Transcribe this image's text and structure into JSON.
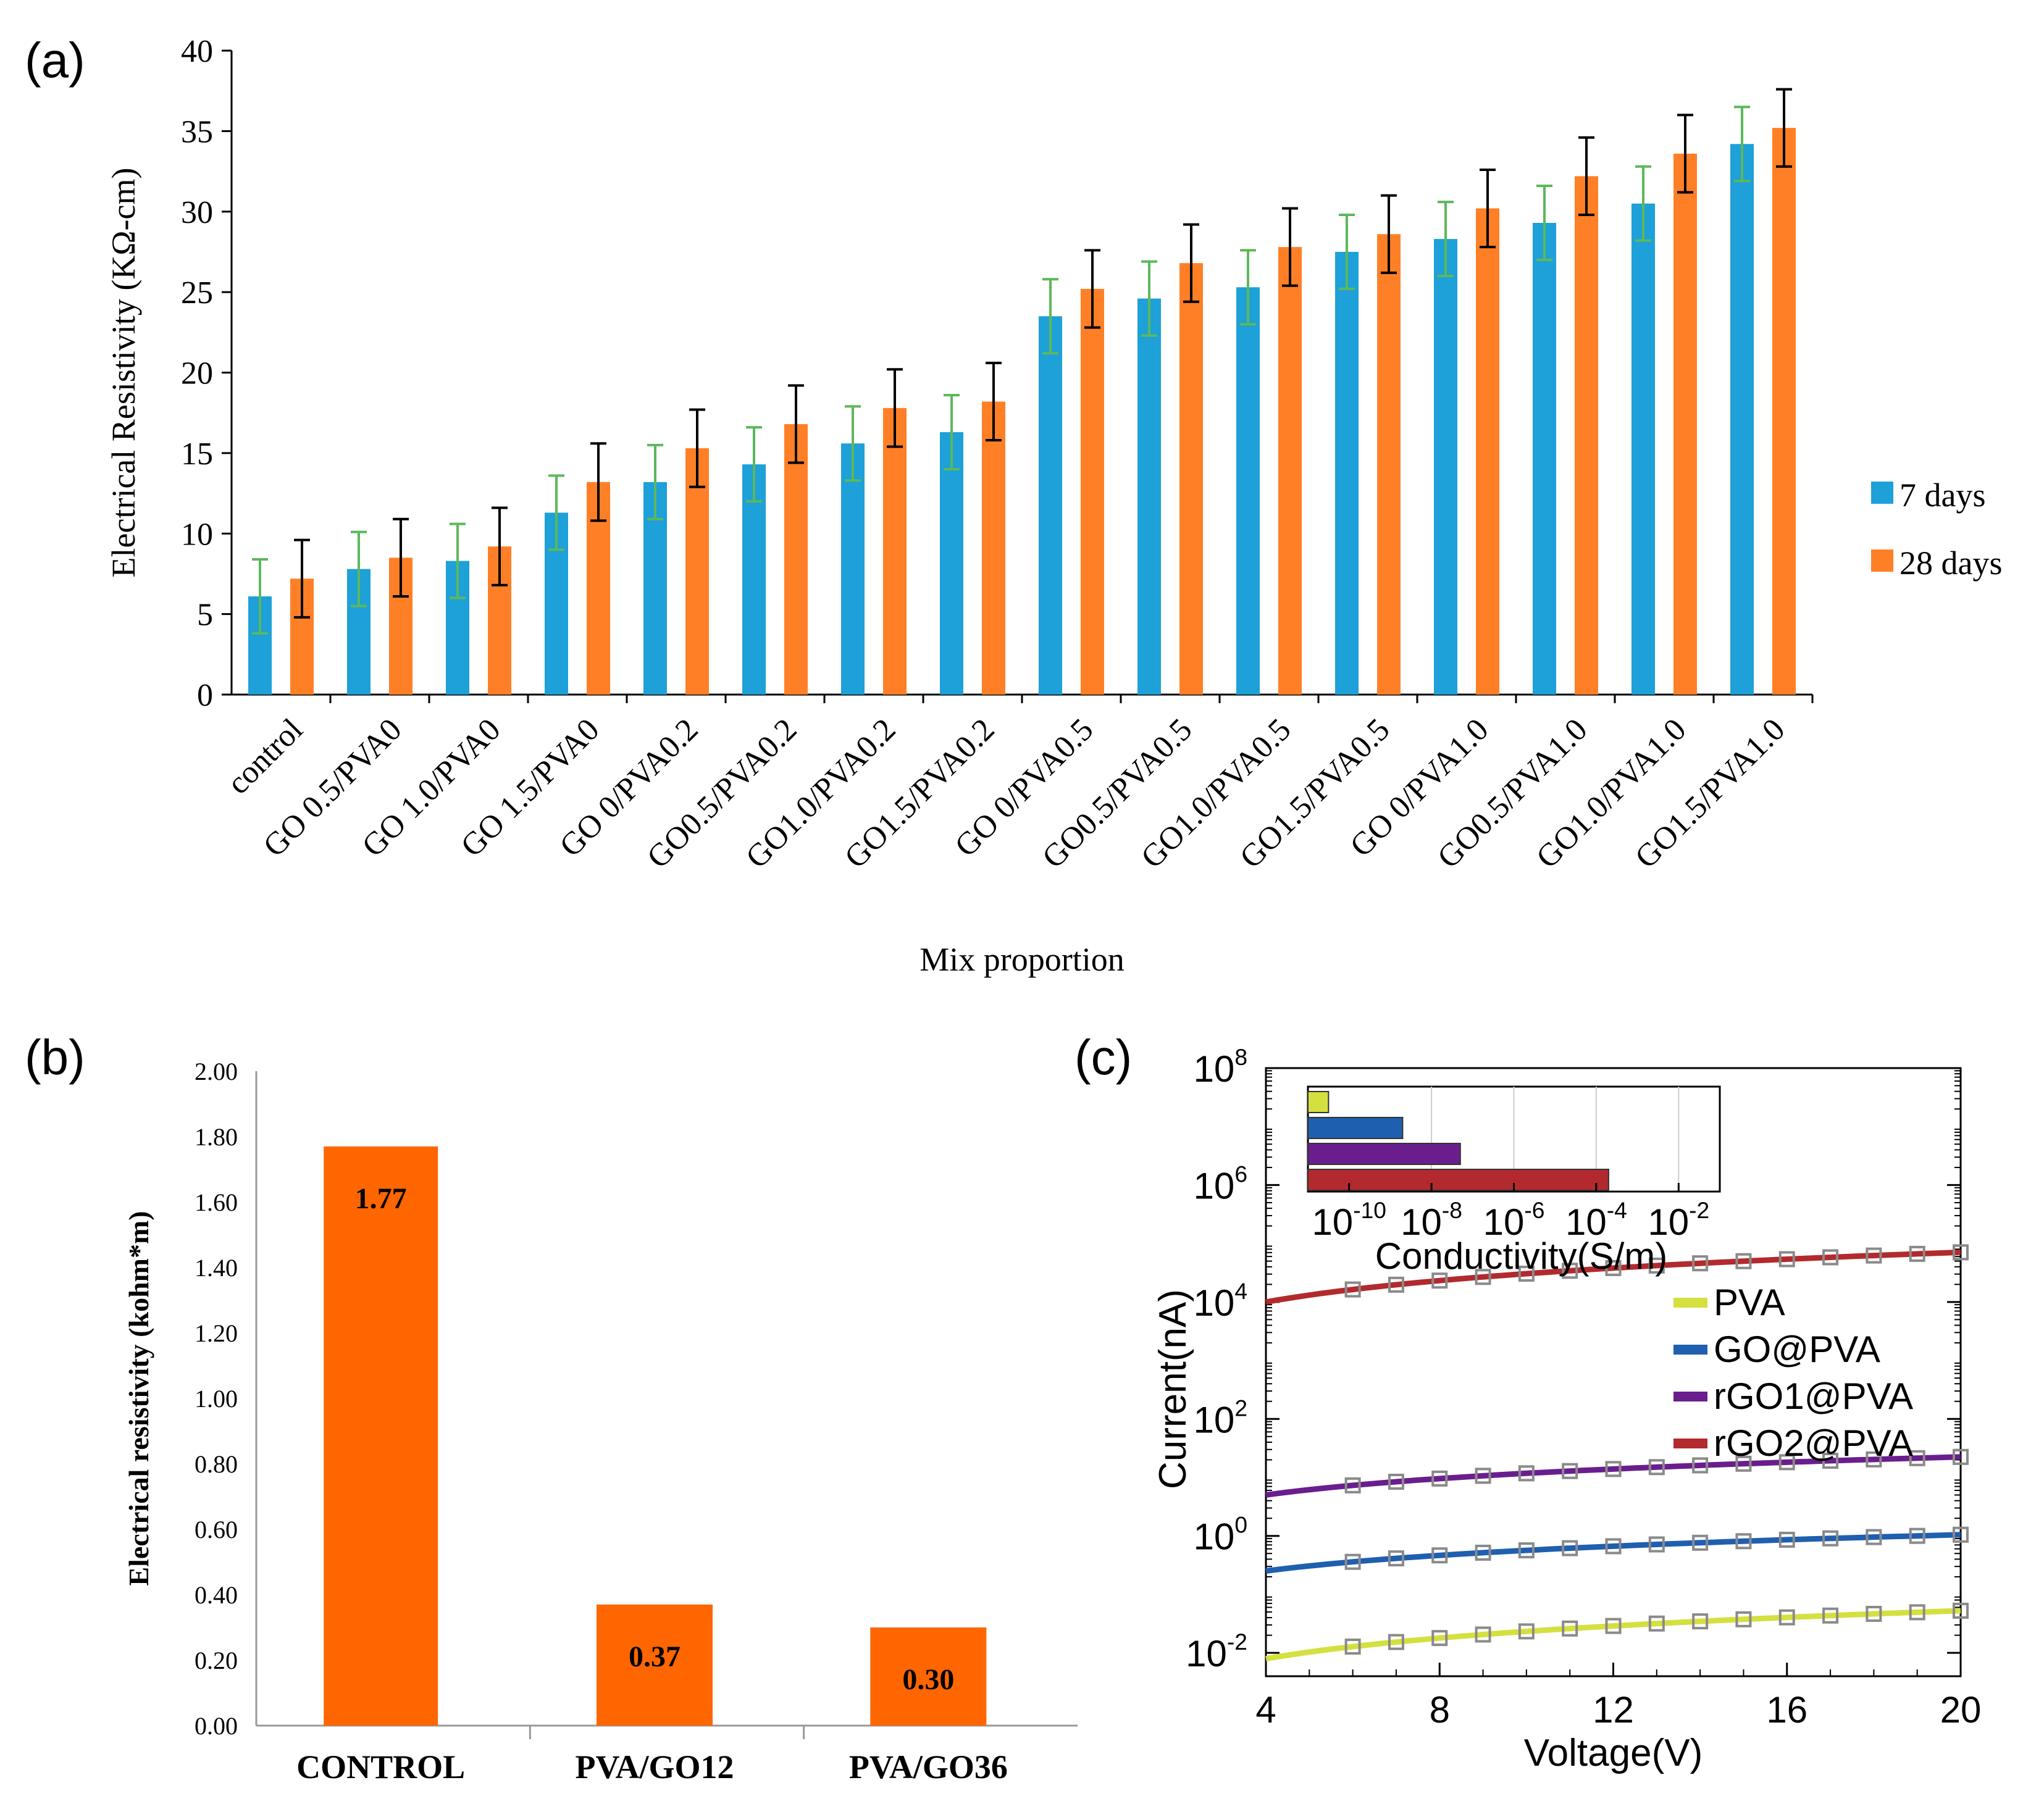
{
  "chart_data": [
    {
      "panel": "(a)",
      "type": "bar",
      "xlabel": "Mix proportion",
      "ylabel": "Electrical Resistivity (KΩ-cm)",
      "ylim": [
        0,
        40
      ],
      "yticks": [
        0,
        5,
        10,
        15,
        20,
        25,
        30,
        35,
        40
      ],
      "categories": [
        "control",
        "GO 0.5/PVA0",
        "GO 1.0/PVA0",
        "GO 1.5/PVA0",
        "GO 0/PVA0.2",
        "GO0.5/PVA0.2",
        "GO1.0/PVA0.2",
        "GO1.5/PVA0.2",
        "GO 0/PVA0.5",
        "GO0.5/PVA0.5",
        "GO1.0/PVA0.5",
        "GO1.5/PVA0.5",
        "GO 0/PVA1.0",
        "GO0.5/PVA1.0",
        "GO1.0/PVA1.0",
        "GO1.5/PVA1.0"
      ],
      "series": [
        {
          "name": "7 days",
          "color": "#1ea0d8",
          "errcolor": "#5cb85c",
          "values": [
            6.1,
            7.8,
            8.3,
            11.3,
            13.2,
            14.3,
            15.6,
            16.3,
            23.5,
            24.6,
            25.3,
            27.5,
            28.3,
            29.3,
            30.5,
            34.2
          ],
          "errors": [
            2.3,
            2.3,
            2.3,
            2.3,
            2.3,
            2.3,
            2.3,
            2.3,
            2.3,
            2.3,
            2.3,
            2.3,
            2.3,
            2.3,
            2.3,
            2.3
          ]
        },
        {
          "name": "28 days",
          "color": "#ff7f27",
          "errcolor": "#000000",
          "values": [
            7.2,
            8.5,
            9.2,
            13.2,
            15.3,
            16.8,
            17.8,
            18.2,
            25.2,
            26.8,
            27.8,
            28.6,
            30.2,
            32.2,
            33.6,
            35.2
          ],
          "errors": [
            2.4,
            2.4,
            2.4,
            2.4,
            2.4,
            2.4,
            2.4,
            2.4,
            2.4,
            2.4,
            2.4,
            2.4,
            2.4,
            2.4,
            2.4,
            2.4
          ]
        }
      ],
      "legend_position": "right"
    },
    {
      "panel": "(b)",
      "type": "bar",
      "xlabel": "",
      "ylabel": "Electrical resistivity (kohm*m)",
      "ylim": [
        0,
        2.0
      ],
      "yticks": [
        "0.00",
        "0.20",
        "0.40",
        "0.60",
        "0.80",
        "1.00",
        "1.20",
        "1.40",
        "1.60",
        "1.80",
        "2.00"
      ],
      "categories": [
        "CONTROL",
        "PVA/GO12",
        "PVA/GO36"
      ],
      "values": [
        1.77,
        0.37,
        0.3
      ],
      "data_labels": [
        "1.77",
        "0.37",
        "0.30"
      ],
      "color": "#ff6600"
    },
    {
      "panel": "(c)",
      "type": "line",
      "xlabel": "Voltage(V)",
      "ylabel": "Current(nA)",
      "xlim": [
        4,
        20
      ],
      "xticks": [
        "4",
        "8",
        "12",
        "16",
        "20"
      ],
      "yscale": "log",
      "ylim_exp": [
        -2.4,
        8
      ],
      "yticks_exp": [
        "-2",
        "0",
        "2",
        "4",
        "6",
        "8"
      ],
      "marker_x": [
        6,
        7,
        8,
        9,
        10,
        11,
        12,
        13,
        14,
        15,
        16,
        17,
        18,
        19,
        20
      ],
      "series": [
        {
          "name": "PVA",
          "color": "#d4e040",
          "log10_at_4V": -2.1,
          "log10_at_20V": -1.28
        },
        {
          "name": "GO@PVA",
          "color": "#1f5fb0",
          "log10_at_4V": -0.6,
          "log10_at_20V": 0.02
        },
        {
          "name": "rGO1@PVA",
          "color": "#6a1e8e",
          "log10_at_4V": 0.7,
          "log10_at_20V": 1.35
        },
        {
          "name": "rGO2@PVA",
          "color": "#b22a2e",
          "log10_at_4V": 4.0,
          "log10_at_20V": 4.85
        }
      ],
      "inset": {
        "type": "bar",
        "orientation": "horizontal",
        "xlabel": "Conductivity(S/m)",
        "xscale": "log",
        "xlim_exp": [
          -11,
          -1
        ],
        "xticks_exp": [
          "-10",
          "-8",
          "-6",
          "-4",
          "-2"
        ],
        "bars": [
          {
            "name": "PVA",
            "color": "#d4e040",
            "log10_min": -11,
            "log10_max": -10.5
          },
          {
            "name": "GO@PVA",
            "color": "#1f5fb0",
            "log10_min": -11,
            "log10_max": -8.7
          },
          {
            "name": "rGO1@PVA",
            "color": "#6a1e8e",
            "log10_min": -11,
            "log10_max": -7.3
          },
          {
            "name": "rGO2@PVA",
            "color": "#b22a2e",
            "log10_min": -11,
            "log10_max": -3.7
          }
        ]
      }
    }
  ]
}
